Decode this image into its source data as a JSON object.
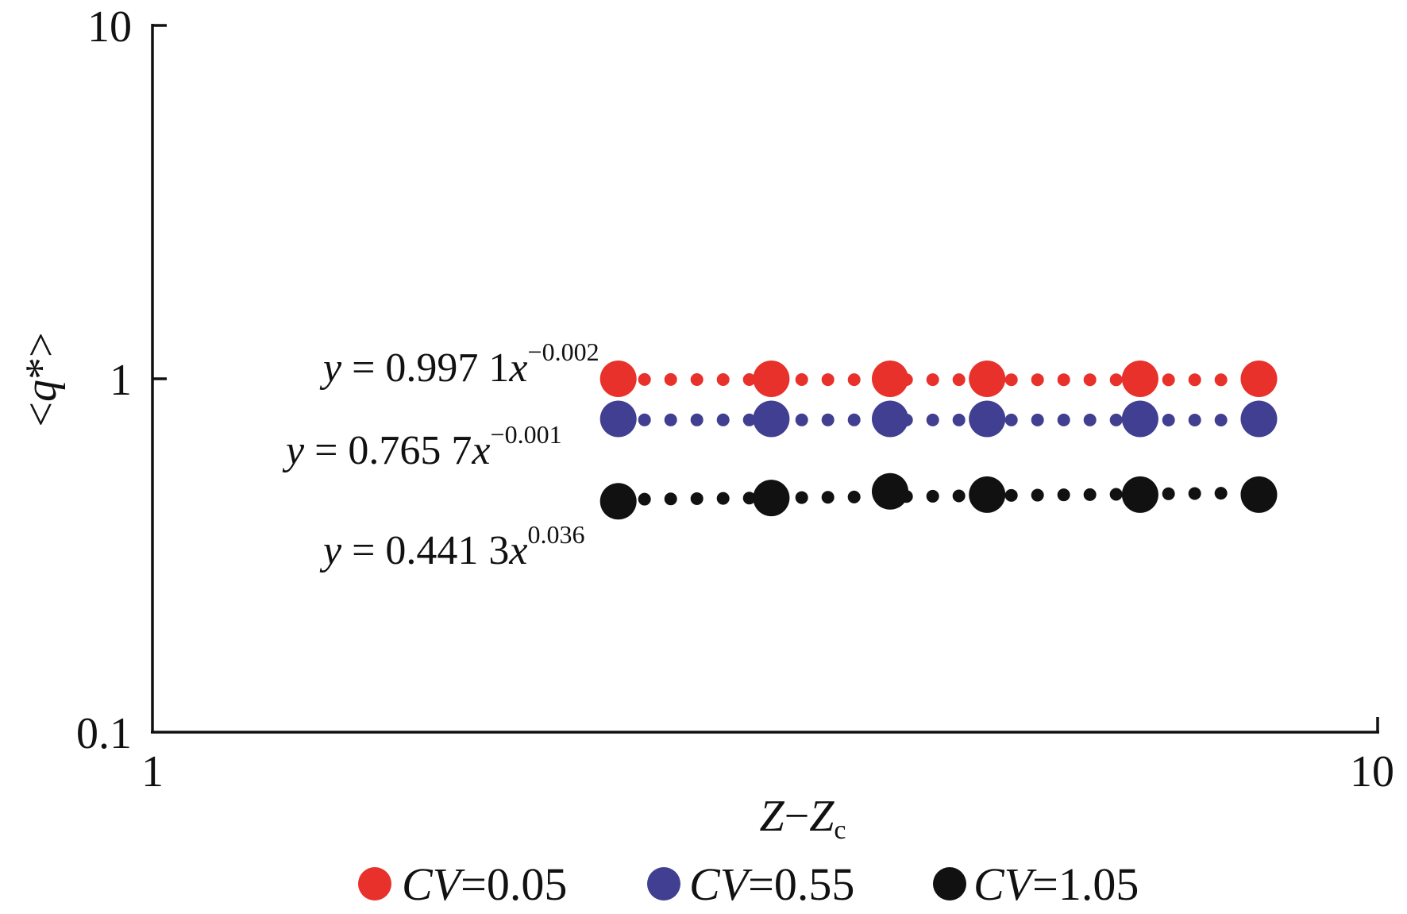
{
  "chart_data": {
    "type": "scatter",
    "xscale": "log",
    "yscale": "log",
    "xlim": [
      1,
      10
    ],
    "ylim": [
      0.1,
      10
    ],
    "xlabel": "Z−Zc",
    "ylabel": "<q*>",
    "xticks": [
      "1",
      "10"
    ],
    "yticks": [
      "0.1",
      "1",
      "10"
    ],
    "grid": false,
    "legend": "bottom",
    "x": [
      2.4,
      3.2,
      4.0,
      4.8,
      6.4,
      8.0
    ],
    "series": [
      {
        "name": "CV=0.05",
        "color": "#e8312a",
        "values": [
          1.0,
          1.0,
          1.0,
          1.0,
          1.0,
          1.0
        ],
        "trendline": {
          "type": "power",
          "a": 0.9971,
          "b": -0.002,
          "equation": "y = 0.997 1x",
          "exponent": "−0.002"
        }
      },
      {
        "name": "CV=0.55",
        "color": "#403f91",
        "values": [
          0.77,
          0.77,
          0.77,
          0.77,
          0.77,
          0.77
        ],
        "trendline": {
          "type": "power",
          "a": 0.7657,
          "b": -0.001,
          "equation": "y = 0.765 7x",
          "exponent": "−0.001"
        }
      },
      {
        "name": "CV=1.05",
        "color": "#111111",
        "values": [
          0.45,
          0.46,
          0.48,
          0.47,
          0.47,
          0.47
        ],
        "trendline": {
          "type": "power",
          "a": 0.4413,
          "b": 0.036,
          "equation": "y = 0.441 3x",
          "exponent": "0.036"
        }
      }
    ]
  }
}
